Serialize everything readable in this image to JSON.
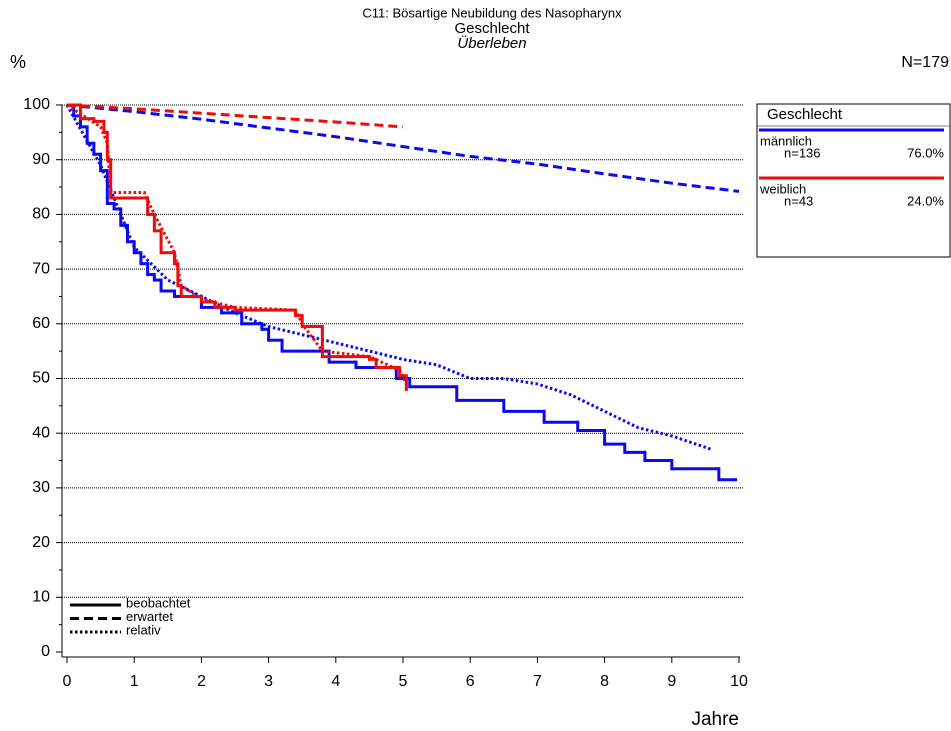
{
  "chart_data": {
    "type": "line",
    "title": "C11: Bösartige Neubildung des Nasopharynx",
    "subtitle": "Geschlecht",
    "caption": "Überleben",
    "y_label": "%",
    "x_label": "Jahre",
    "n_total": "N=179",
    "legend_title": "Geschlecht",
    "style_names": [
      "beobachtet",
      "erwartet",
      "relativ"
    ],
    "xlim": [
      0,
      10
    ],
    "ylim": [
      0,
      100
    ],
    "xticks": [
      0,
      1,
      2,
      3,
      4,
      5,
      6,
      7,
      8,
      9,
      10
    ],
    "yticks": [
      0,
      10,
      20,
      30,
      40,
      50,
      60,
      70,
      80,
      90,
      100
    ],
    "grid": true,
    "series": [
      {
        "name": "männlich",
        "color": "#0a0af0",
        "n_label": "n=136",
        "share_label": "76.0%",
        "observed": {
          "x": [
            0,
            0.1,
            0.2,
            0.3,
            0.4,
            0.5,
            0.6,
            0.7,
            0.8,
            0.9,
            1.0,
            1.1,
            1.2,
            1.3,
            1.4,
            1.6,
            2.0,
            2.3,
            2.6,
            2.9,
            3.0,
            3.2,
            3.9,
            4.3,
            4.9,
            5.1,
            5.8,
            6.5,
            7.1,
            7.6,
            8.0,
            8.3,
            8.6,
            9.0,
            9.7,
            9.95
          ],
          "values": [
            100,
            98,
            96,
            93,
            91,
            88,
            82,
            81,
            78,
            75,
            73,
            71,
            69,
            68,
            66,
            65,
            63,
            62,
            60,
            59,
            57,
            55,
            53,
            52,
            50,
            48.5,
            46,
            44,
            42,
            40.5,
            38,
            36.5,
            35,
            33.5,
            31.5,
            31.5
          ]
        },
        "expected": {
          "x": [
            0,
            1,
            2,
            3,
            4,
            5,
            6,
            7,
            8,
            9,
            10
          ],
          "values": [
            100,
            98.8,
            97.4,
            95.8,
            94.2,
            92.4,
            90.6,
            89.2,
            87.4,
            85.7,
            84.2
          ]
        },
        "relative": {
          "x": [
            0,
            0.5,
            1,
            1.5,
            2,
            2.5,
            3,
            3.5,
            4,
            4.5,
            5,
            5.5,
            6,
            6.5,
            7,
            7.5,
            8,
            8.5,
            9,
            9.6
          ],
          "values": [
            100,
            89,
            74,
            68,
            65,
            62,
            59.5,
            58,
            56.5,
            55,
            53.5,
            52.5,
            50,
            50,
            49,
            47,
            44,
            41,
            39.5,
            37
          ]
        }
      },
      {
        "name": "weiblich",
        "color": "#f00a0a",
        "n_label": "n=43",
        "share_label": "24.0%",
        "observed": {
          "x": [
            0,
            0.2,
            0.4,
            0.55,
            0.6,
            0.65,
            1.15,
            1.2,
            1.3,
            1.4,
            1.6,
            1.65,
            1.7,
            2.0,
            2.2,
            2.5,
            3.4,
            3.5,
            3.8,
            4.5,
            4.6,
            4.95,
            5.05
          ],
          "values": [
            100,
            97.5,
            97,
            95,
            90,
            83,
            83,
            80,
            77,
            73,
            71,
            67,
            65,
            64,
            63,
            62.5,
            61.5,
            59.5,
            54,
            53.5,
            52,
            50.5,
            48
          ]
        },
        "expected": {
          "x": [
            0,
            1,
            2,
            3,
            4,
            5
          ],
          "values": [
            100,
            99.3,
            98.5,
            97.7,
            96.9,
            96
          ]
        },
        "relative": {
          "x": [
            0,
            0.5,
            0.6,
            0.65,
            1.15,
            1.3,
            1.6,
            1.7,
            2,
            2.5,
            3.4,
            3.5,
            3.8,
            4.5,
            4.95,
            5.05
          ],
          "values": [
            100,
            96,
            93,
            84,
            84,
            80,
            73,
            67,
            64.5,
            63,
            62.5,
            60,
            55,
            54,
            51.5,
            49
          ]
        }
      }
    ]
  }
}
